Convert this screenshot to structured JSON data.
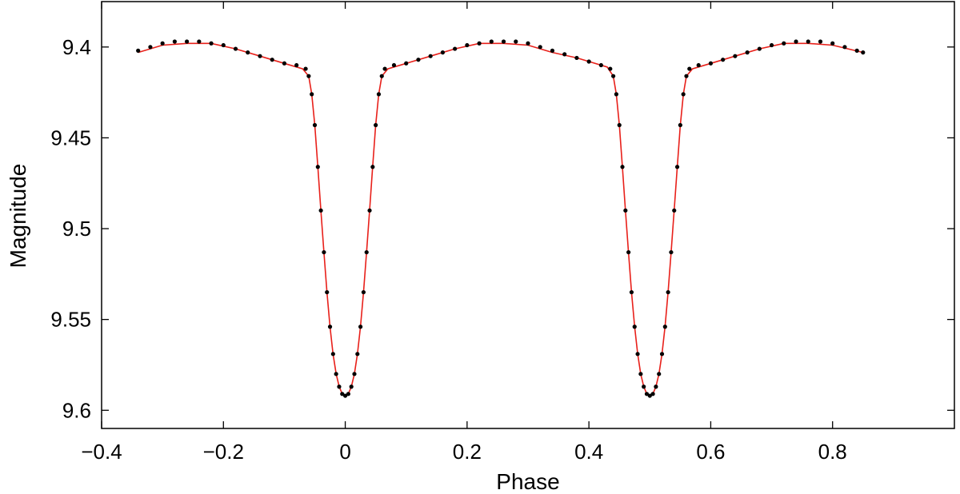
{
  "chart_data": {
    "type": "scatter",
    "title": "",
    "xlabel": "Phase",
    "ylabel": "Magnitude",
    "xlim": [
      -0.4,
      1.0
    ],
    "ylim": [
      9.375,
      9.61
    ],
    "y_inverted": true,
    "grid": false,
    "x_ticks": [
      -0.4,
      -0.2,
      0,
      0.2,
      0.4,
      0.6,
      0.8
    ],
    "x_tick_labels": [
      "−0.4",
      "−0.2",
      "0",
      "0.2",
      "0.4",
      "0.6",
      "0.8"
    ],
    "y_ticks": [
      9.4,
      9.45,
      9.5,
      9.55,
      9.6
    ],
    "y_tick_labels": [
      "9.4",
      "9.45",
      "9.5",
      "9.55",
      "9.6"
    ],
    "colors": {
      "observed": "#000000",
      "model": "#e8201a"
    },
    "series": [
      {
        "kind": "points",
        "x": [
          -0.34,
          -0.32,
          -0.3,
          -0.28,
          -0.26,
          -0.24,
          -0.22,
          -0.2,
          -0.18,
          -0.16,
          -0.14,
          -0.12,
          -0.1,
          -0.08,
          -0.065,
          -0.06,
          -0.055,
          -0.05,
          -0.045,
          -0.04,
          -0.035,
          -0.03,
          -0.025,
          -0.02,
          -0.015,
          -0.01,
          -0.005,
          0.0,
          0.005,
          0.01,
          0.015,
          0.02,
          0.025,
          0.03,
          0.035,
          0.04,
          0.045,
          0.05,
          0.055,
          0.06,
          0.065,
          0.08,
          0.1,
          0.12,
          0.14,
          0.16,
          0.18,
          0.2,
          0.22,
          0.24,
          0.26,
          0.28,
          0.3,
          0.32,
          0.34,
          0.36,
          0.38,
          0.4,
          0.42,
          0.435,
          0.44,
          0.445,
          0.45,
          0.455,
          0.46,
          0.465,
          0.47,
          0.475,
          0.48,
          0.485,
          0.49,
          0.495,
          0.5,
          0.505,
          0.51,
          0.515,
          0.52,
          0.525,
          0.53,
          0.535,
          0.54,
          0.545,
          0.55,
          0.555,
          0.56,
          0.565,
          0.58,
          0.6,
          0.62,
          0.64,
          0.66,
          0.68,
          0.7,
          0.72,
          0.74,
          0.76,
          0.78,
          0.8,
          0.82,
          0.84,
          0.85
        ],
        "y": [
          9.402,
          9.4,
          9.398,
          9.397,
          9.397,
          9.397,
          9.398,
          9.399,
          9.401,
          9.403,
          9.405,
          9.407,
          9.409,
          9.41,
          9.412,
          9.416,
          9.426,
          9.443,
          9.466,
          9.49,
          9.513,
          9.535,
          9.554,
          9.569,
          9.58,
          9.587,
          9.591,
          9.592,
          9.591,
          9.587,
          9.58,
          9.569,
          9.554,
          9.535,
          9.513,
          9.49,
          9.466,
          9.443,
          9.426,
          9.416,
          9.412,
          9.41,
          9.409,
          9.407,
          9.405,
          9.403,
          9.401,
          9.399,
          9.398,
          9.397,
          9.397,
          9.397,
          9.398,
          9.4,
          9.402,
          9.404,
          9.406,
          9.408,
          9.41,
          9.412,
          9.416,
          9.426,
          9.443,
          9.466,
          9.49,
          9.513,
          9.535,
          9.554,
          9.569,
          9.58,
          9.587,
          9.591,
          9.592,
          9.591,
          9.587,
          9.58,
          9.569,
          9.554,
          9.535,
          9.513,
          9.49,
          9.466,
          9.443,
          9.426,
          9.416,
          9.412,
          9.41,
          9.409,
          9.407,
          9.405,
          9.403,
          9.401,
          9.399,
          9.398,
          9.397,
          9.397,
          9.397,
          9.398,
          9.4,
          9.402,
          9.403
        ]
      },
      {
        "kind": "line",
        "x": [
          -0.34,
          -0.3,
          -0.26,
          -0.22,
          -0.18,
          -0.14,
          -0.1,
          -0.07,
          -0.06,
          -0.055,
          -0.05,
          -0.045,
          -0.04,
          -0.035,
          -0.03,
          -0.025,
          -0.02,
          -0.015,
          -0.01,
          -0.005,
          0.0,
          0.005,
          0.01,
          0.015,
          0.02,
          0.025,
          0.03,
          0.035,
          0.04,
          0.045,
          0.05,
          0.055,
          0.06,
          0.07,
          0.1,
          0.14,
          0.18,
          0.22,
          0.26,
          0.3,
          0.34,
          0.38,
          0.43,
          0.44,
          0.445,
          0.45,
          0.455,
          0.46,
          0.465,
          0.47,
          0.475,
          0.48,
          0.485,
          0.49,
          0.495,
          0.5,
          0.505,
          0.51,
          0.515,
          0.52,
          0.525,
          0.53,
          0.535,
          0.54,
          0.545,
          0.55,
          0.555,
          0.56,
          0.57,
          0.6,
          0.64,
          0.68,
          0.72,
          0.76,
          0.8,
          0.85
        ],
        "y": [
          9.403,
          9.399,
          9.398,
          9.398,
          9.401,
          9.405,
          9.409,
          9.412,
          9.416,
          9.426,
          9.443,
          9.466,
          9.49,
          9.513,
          9.535,
          9.554,
          9.569,
          9.58,
          9.587,
          9.591,
          9.592,
          9.591,
          9.587,
          9.58,
          9.569,
          9.554,
          9.535,
          9.513,
          9.49,
          9.466,
          9.443,
          9.426,
          9.416,
          9.412,
          9.409,
          9.405,
          9.401,
          9.398,
          9.398,
          9.399,
          9.403,
          9.406,
          9.411,
          9.416,
          9.426,
          9.443,
          9.466,
          9.49,
          9.513,
          9.535,
          9.554,
          9.569,
          9.58,
          9.587,
          9.591,
          9.592,
          9.591,
          9.587,
          9.58,
          9.569,
          9.554,
          9.535,
          9.513,
          9.49,
          9.466,
          9.443,
          9.426,
          9.416,
          9.412,
          9.409,
          9.405,
          9.401,
          9.398,
          9.398,
          9.399,
          9.403
        ]
      }
    ]
  }
}
